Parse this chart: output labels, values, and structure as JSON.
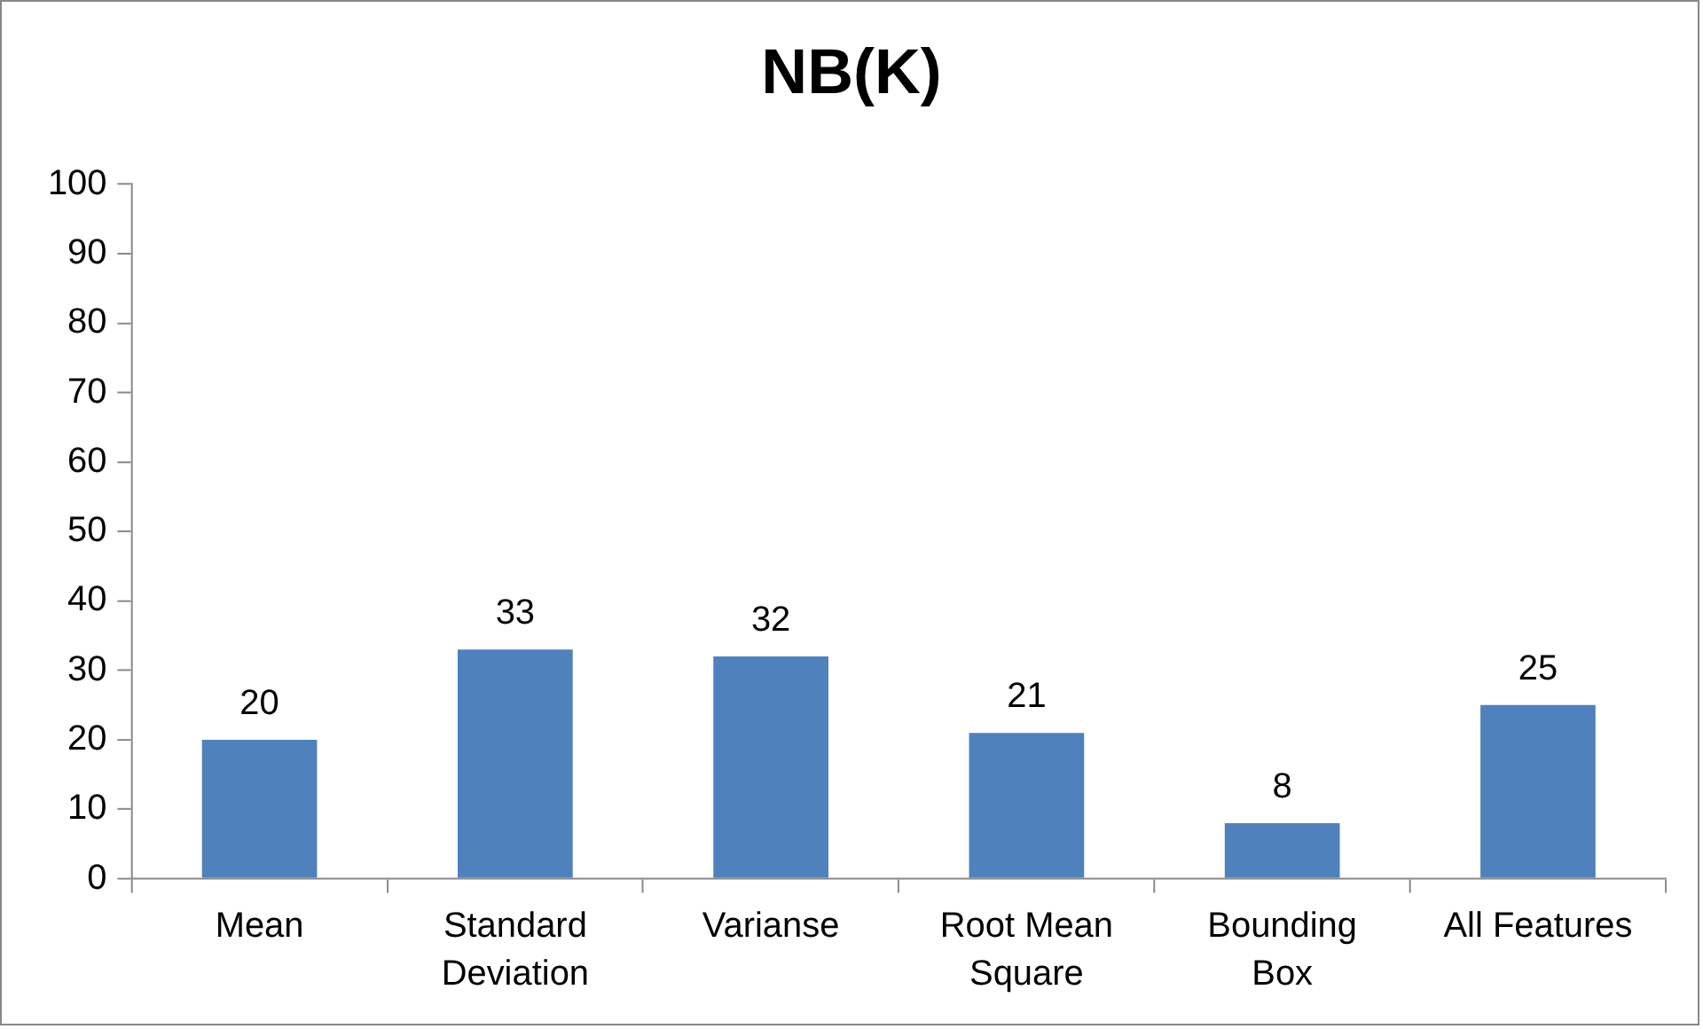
{
  "chart_data": {
    "type": "bar",
    "title": "NB(K)",
    "categories": [
      "Mean",
      "Standard Deviation",
      "Varianse",
      "Root Mean Square",
      "Bounding Box",
      "All Features"
    ],
    "values": [
      20,
      33,
      32,
      21,
      8,
      25
    ],
    "color": "#4f81bd",
    "ylim": [
      0,
      100
    ],
    "yticks": [
      0,
      10,
      20,
      30,
      40,
      50,
      60,
      70,
      80,
      90,
      100
    ],
    "grid": false,
    "legend": false,
    "data_labels": true
  }
}
